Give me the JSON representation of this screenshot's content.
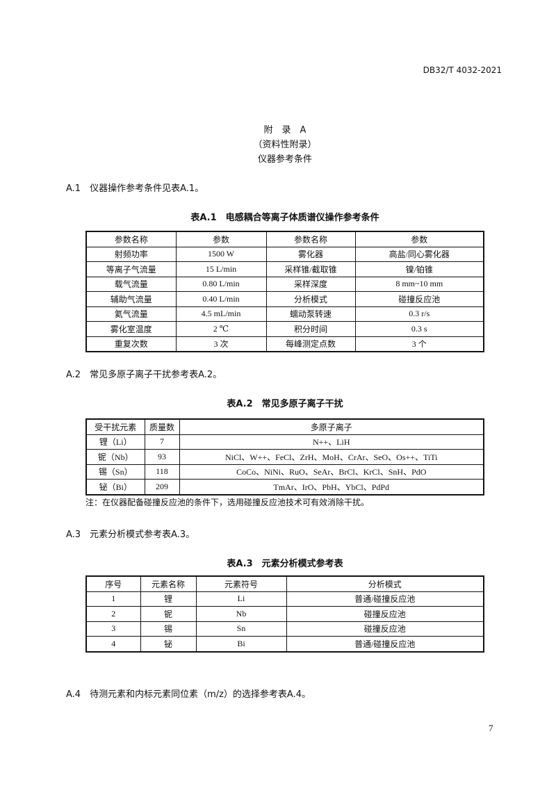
{
  "header": {
    "code": "DB32/T 4032-2021"
  },
  "title": {
    "line1": "附　录　A",
    "line2": "（资料性附录）",
    "line3": "仪器参考条件"
  },
  "sections": {
    "a1": "A.1　仪器操作参考条件见表A.1。",
    "a2": "A.2　常见多原子离子干扰参考表A.2。",
    "a3": "A.3　元素分析模式参考表A.3。",
    "a4": "A.4　待测元素和内标元素同位素（m/z）的选择参考表A.4。"
  },
  "table1": {
    "caption": "表A.1　电感耦合等离子体质谱仪操作参考条件",
    "headers": [
      "参数名称",
      "参数",
      "参数名称",
      "参数"
    ],
    "rows": [
      [
        "射频功率",
        "1500 W",
        "雾化器",
        "高盐/同心雾化器"
      ],
      [
        "等离子气流量",
        "15 L/min",
        "采样锥/截取锥",
        "镍/铂锥"
      ],
      [
        "载气流量",
        "0.80 L/min",
        "采样深度",
        "8 mm~10 mm"
      ],
      [
        "辅助气流量",
        "0.40 L/min",
        "分析模式",
        "碰撞反应池"
      ],
      [
        "氦气流量",
        "4.5 mL/min",
        "蠕动泵转速",
        "0.3 r/s"
      ],
      [
        "雾化室温度",
        "2 ℃",
        "积分时间",
        "0.3 s"
      ],
      [
        "重复次数",
        "3 次",
        "每峰测定点数",
        "3 个"
      ]
    ]
  },
  "table2": {
    "caption": "表A.2　常见多原子离子干扰",
    "headers": [
      "受干扰元素",
      "质量数",
      "多原子离子"
    ],
    "rows": [
      [
        "锂（Li）",
        "7",
        "N++、LiH"
      ],
      [
        "铌（Nb）",
        "93",
        "NiCl、W++、FeCl、ZrH、MoH、CrAr、SeO、Os++、TiTi"
      ],
      [
        "锡（Sn）",
        "118",
        "CoCo、NiNi、RuO、SeAr、BrCl、KrCl、SnH、PdO"
      ],
      [
        "铋（Bi）",
        "209",
        "TmAr、IrO、PbH、YbCl、PdPd"
      ]
    ],
    "note": "注：在仪器配备碰撞反应池的条件下，选用碰撞反应池技术可有效消除干扰。"
  },
  "table3": {
    "caption": "表A.3　元素分析模式参考表",
    "headers": [
      "序号",
      "元素名称",
      "元素符号",
      "分析模式"
    ],
    "rows": [
      [
        "1",
        "锂",
        "Li",
        "普通/碰撞反应池"
      ],
      [
        "2",
        "铌",
        "Nb",
        "碰撞反应池"
      ],
      [
        "3",
        "锡",
        "Sn",
        "碰撞反应池"
      ],
      [
        "4",
        "铋",
        "Bi",
        "普通/碰撞反应池"
      ]
    ]
  },
  "footer": {
    "page": "7"
  }
}
